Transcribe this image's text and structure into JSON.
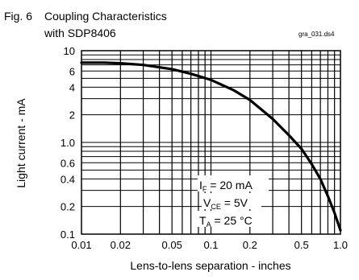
{
  "chart_data": {
    "type": "line",
    "figure_label": "Fig. 6",
    "title": "Coupling Characteristics",
    "subtitle": "with SDP8406",
    "file_ref": "gra_031.ds4",
    "xlabel": "Lens-to-lens separation - inches",
    "ylabel": "Light current - mA",
    "x_scale": "log",
    "y_scale": "log",
    "xlim": [
      0.01,
      1.0
    ],
    "ylim": [
      0.1,
      10
    ],
    "grid": true,
    "x_ticks": [
      "0.01",
      "0.02",
      "0.05",
      "0.1",
      "0.2",
      "0.5",
      "1.0"
    ],
    "y_ticks": [
      "0.1",
      "0.2",
      "0.4",
      "0.6",
      "1.0",
      "2",
      "4",
      "6",
      "10"
    ],
    "series": [
      {
        "x": [
          0.01,
          0.015,
          0.02,
          0.03,
          0.05,
          0.07,
          0.1,
          0.15,
          0.2,
          0.3,
          0.4,
          0.5,
          0.6,
          0.7,
          0.8,
          0.9,
          1.0
        ],
        "y": [
          7.4,
          7.4,
          7.3,
          7.0,
          6.3,
          5.6,
          4.8,
          3.7,
          2.9,
          1.8,
          1.2,
          0.85,
          0.58,
          0.4,
          0.26,
          0.17,
          0.11
        ]
      }
    ],
    "annotations": [
      {
        "label": "I",
        "sub": "F",
        "value": " = 20 mA"
      },
      {
        "label": "V",
        "sub": "CE",
        "value": " = 5V"
      },
      {
        "label": "T",
        "sub": "A",
        "value": " = 25 °C"
      }
    ]
  }
}
